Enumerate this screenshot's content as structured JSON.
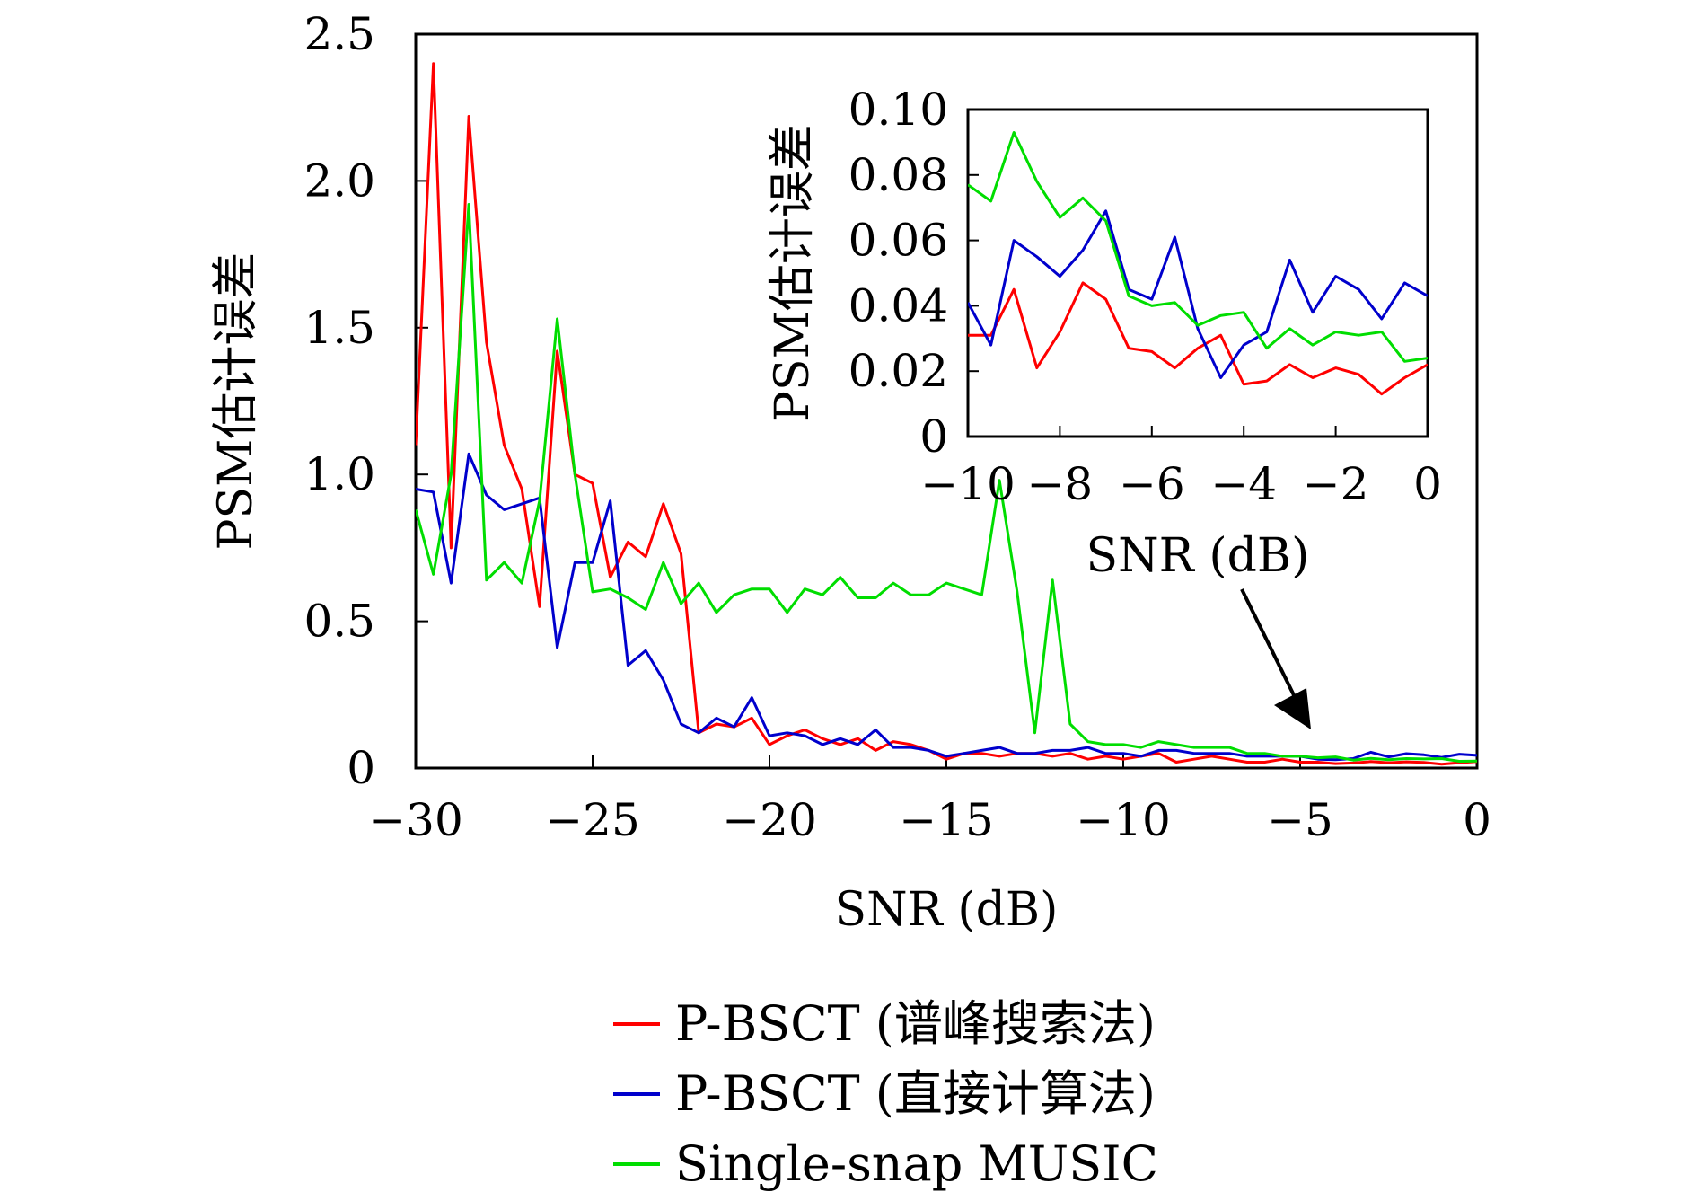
{
  "chart_data": [
    {
      "type": "line",
      "xlabel": "SNR (dB)",
      "ylabel": "PSM估计误差",
      "xlim": [
        -30,
        0
      ],
      "ylim": [
        0,
        2.5
      ],
      "xticks": [
        "−30",
        "−25",
        "−20",
        "−15",
        "−10",
        "−5",
        "0"
      ],
      "xtick_values": [
        -30,
        -25,
        -20,
        -15,
        -10,
        -5,
        0
      ],
      "yticks": [
        "0",
        "0.5",
        "1.0",
        "1.5",
        "2.0",
        "2.5"
      ],
      "ytick_values": [
        0,
        0.5,
        1.0,
        1.5,
        2.0,
        2.5
      ],
      "grid": false,
      "legend_position": "bottom",
      "x": [
        -30,
        -29.5,
        -29,
        -28.5,
        -28,
        -27.5,
        -27,
        -26.5,
        -26,
        -25.5,
        -25,
        -24.5,
        -24,
        -23.5,
        -23,
        -22.5,
        -22,
        -21.5,
        -21,
        -20.5,
        -20,
        -19.5,
        -19,
        -18.5,
        -18,
        -17.5,
        -17,
        -16.5,
        -16,
        -15.5,
        -15,
        -14.5,
        -14,
        -13.5,
        -13,
        -12.5,
        -12,
        -11.5,
        -11,
        -10.5,
        -10,
        -9.5,
        -9,
        -8.5,
        -8,
        -7.5,
        -7,
        -6.5,
        -6,
        -5.5,
        -5,
        -4.5,
        -4,
        -3.5,
        -3,
        -2.5,
        -2,
        -1.5,
        -1,
        -0.5,
        0
      ],
      "series": [
        {
          "name": "P-BSCT (谱峰搜索法)",
          "color": "#ff0000",
          "values": [
            1.1,
            2.4,
            0.75,
            2.22,
            1.45,
            1.1,
            0.95,
            0.55,
            1.42,
            1.0,
            0.97,
            0.65,
            0.77,
            0.72,
            0.9,
            0.73,
            0.12,
            0.15,
            0.14,
            0.17,
            0.08,
            0.11,
            0.13,
            0.1,
            0.08,
            0.1,
            0.06,
            0.09,
            0.08,
            0.06,
            0.03,
            0.05,
            0.05,
            0.04,
            0.05,
            0.05,
            0.04,
            0.05,
            0.03,
            0.04,
            0.03,
            0.04,
            0.05,
            0.02,
            0.03,
            0.04,
            0.03,
            0.02,
            0.02,
            0.03,
            0.02,
            0.02,
            0.015,
            0.017,
            0.022,
            0.018,
            0.021,
            0.019,
            0.013,
            0.018,
            0.022
          ]
        },
        {
          "name": "P-BSCT (直接计算法)",
          "color": "#0000cc",
          "values": [
            0.95,
            0.94,
            0.63,
            1.07,
            0.93,
            0.88,
            0.9,
            0.92,
            0.41,
            0.7,
            0.7,
            0.91,
            0.35,
            0.4,
            0.3,
            0.15,
            0.12,
            0.17,
            0.14,
            0.24,
            0.11,
            0.12,
            0.11,
            0.08,
            0.1,
            0.08,
            0.13,
            0.07,
            0.07,
            0.06,
            0.04,
            0.05,
            0.06,
            0.07,
            0.05,
            0.05,
            0.06,
            0.06,
            0.07,
            0.05,
            0.05,
            0.04,
            0.06,
            0.06,
            0.05,
            0.05,
            0.05,
            0.04,
            0.04,
            0.04,
            0.04,
            0.03,
            0.028,
            0.032,
            0.054,
            0.038,
            0.049,
            0.045,
            0.036,
            0.047,
            0.043
          ]
        },
        {
          "name": "Single-snap MUSIC",
          "color": "#00dd00",
          "values": [
            0.88,
            0.66,
            1.0,
            1.92,
            0.64,
            0.7,
            0.63,
            0.91,
            1.53,
            1.0,
            0.6,
            0.61,
            0.58,
            0.54,
            0.7,
            0.56,
            0.63,
            0.53,
            0.59,
            0.61,
            0.61,
            0.53,
            0.61,
            0.59,
            0.65,
            0.58,
            0.58,
            0.63,
            0.59,
            0.59,
            0.63,
            0.61,
            0.59,
            0.98,
            0.6,
            0.12,
            0.64,
            0.15,
            0.09,
            0.08,
            0.08,
            0.07,
            0.09,
            0.08,
            0.07,
            0.07,
            0.07,
            0.05,
            0.05,
            0.04,
            0.04,
            0.035,
            0.038,
            0.027,
            0.033,
            0.028,
            0.032,
            0.031,
            0.032,
            0.023,
            0.024
          ]
        }
      ]
    },
    {
      "type": "line",
      "xlabel": "SNR (dB)",
      "ylabel": "PSM估计误差",
      "xlim": [
        -10,
        0
      ],
      "ylim": [
        0,
        0.1
      ],
      "xticks": [
        "−10",
        "−8",
        "−6",
        "−4",
        "−2",
        "0"
      ],
      "xtick_values": [
        -10,
        -8,
        -6,
        -4,
        -2,
        0
      ],
      "yticks": [
        "0",
        "0.02",
        "0.04",
        "0.06",
        "0.08",
        "0.10"
      ],
      "ytick_values": [
        0,
        0.02,
        0.04,
        0.06,
        0.08,
        0.1
      ],
      "grid": false,
      "x": [
        -10,
        -9.5,
        -9,
        -8.5,
        -8,
        -7.5,
        -7,
        -6.5,
        -6,
        -5.5,
        -5,
        -4.5,
        -4,
        -3.5,
        -3,
        -2.5,
        -2,
        -1.5,
        -1,
        -0.5,
        0
      ],
      "series": [
        {
          "color": "#ff0000",
          "values": [
            0.031,
            0.031,
            0.045,
            0.021,
            0.032,
            0.047,
            0.042,
            0.027,
            0.026,
            0.021,
            0.027,
            0.031,
            0.016,
            0.017,
            0.022,
            0.018,
            0.021,
            0.019,
            0.013,
            0.018,
            0.022
          ]
        },
        {
          "color": "#0000cc",
          "values": [
            0.041,
            0.028,
            0.06,
            0.055,
            0.049,
            0.057,
            0.069,
            0.045,
            0.042,
            0.061,
            0.033,
            0.018,
            0.028,
            0.032,
            0.054,
            0.038,
            0.049,
            0.045,
            0.036,
            0.047,
            0.043
          ]
        },
        {
          "color": "#00dd00",
          "values": [
            0.077,
            0.072,
            0.093,
            0.078,
            0.067,
            0.073,
            0.066,
            0.043,
            0.04,
            0.041,
            0.034,
            0.037,
            0.038,
            0.027,
            0.033,
            0.028,
            0.032,
            0.031,
            0.032,
            0.023,
            0.024
          ]
        }
      ]
    }
  ]
}
